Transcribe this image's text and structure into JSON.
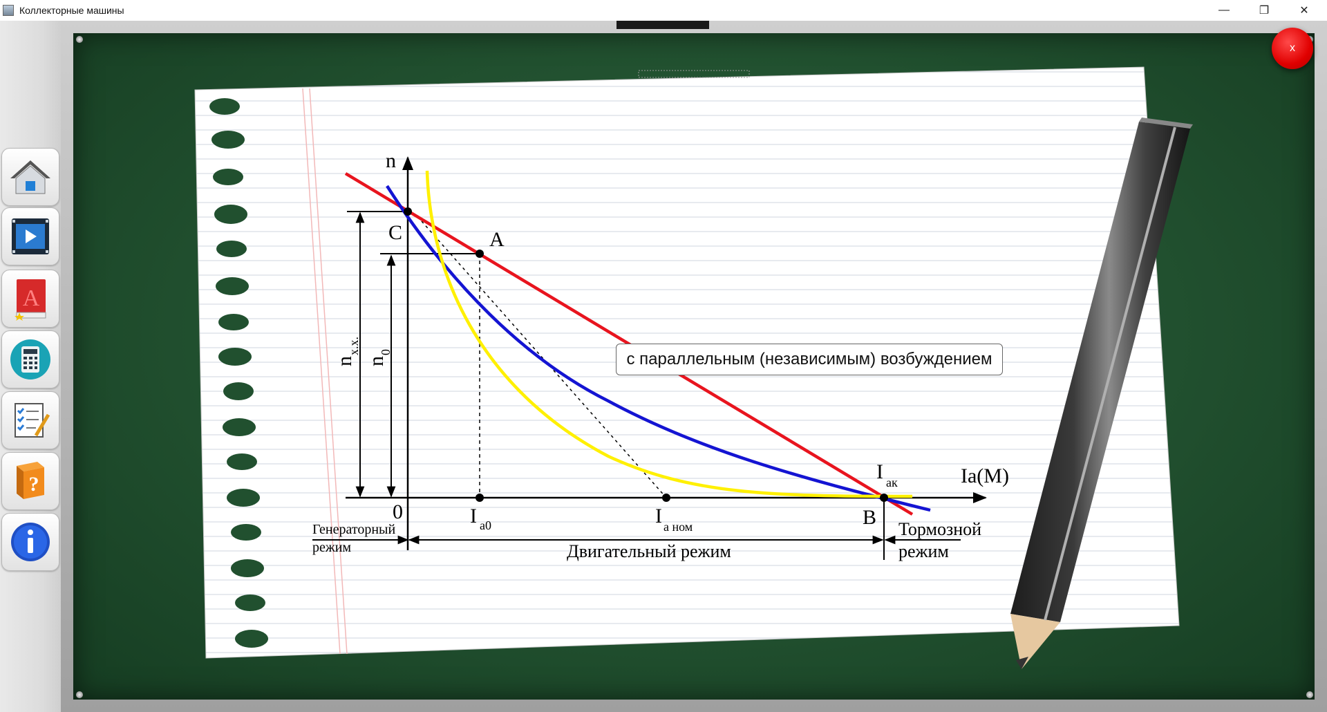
{
  "window": {
    "title": "Коллекторные машины",
    "minimize": "—",
    "restore": "❐",
    "close": "✕"
  },
  "board": {
    "close_label": "x"
  },
  "sidebar": {
    "items": [
      {
        "name": "home",
        "icon": "home-icon"
      },
      {
        "name": "video",
        "icon": "video-icon"
      },
      {
        "name": "book",
        "icon": "book-icon"
      },
      {
        "name": "calculator",
        "icon": "calculator-icon"
      },
      {
        "name": "test",
        "icon": "checklist-icon"
      },
      {
        "name": "help",
        "icon": "help-book-icon"
      },
      {
        "name": "info",
        "icon": "info-icon"
      }
    ]
  },
  "diagram": {
    "axis_y": "n",
    "axis_x": "Ia(M)",
    "point_c": "C",
    "point_a": "A",
    "point_b": "B",
    "origin": "0",
    "nxx_main": "n",
    "nxx_sub": "х.х.",
    "n0_main": "n",
    "n0_sub": "0",
    "ia0_main": "I",
    "ia0_sub": "а0",
    "ianom_main": "I",
    "ianom_sub": "а ном",
    "iak_main": "I",
    "iak_sub": "ак",
    "gen_mode_1": "Генераторный",
    "gen_mode_2": "режим",
    "motor_mode": "Двигательный режим",
    "brake_mode_1": "Тормозной",
    "brake_mode_2": "режим",
    "colors": {
      "red": "#e8141e",
      "blue": "#1414d2",
      "yellow": "#fff000"
    }
  },
  "tooltip": {
    "text": "с параллельным (независимым) возбуждением"
  }
}
